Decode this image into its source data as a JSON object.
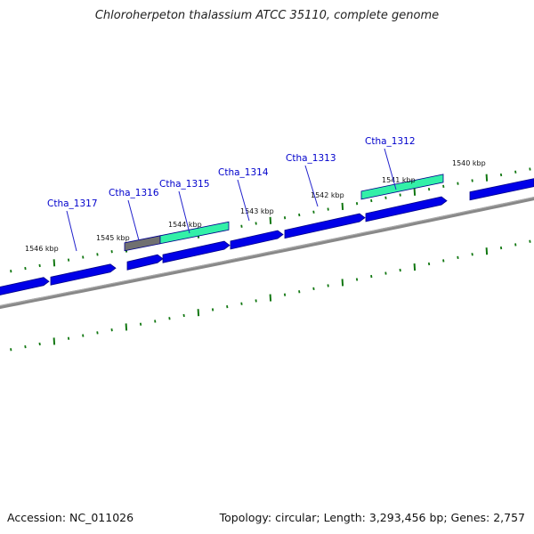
{
  "title": "Chloroherpeton thalassium ATCC 35110, complete genome",
  "footer": {
    "accession": "Accession: NC_011026",
    "summary": "Topology: circular; Length: 3,293,456 bp; Genes: 2,757"
  },
  "colors": {
    "cds": "#0000e8",
    "cds_shadow": "#00008a",
    "rna_or_highlight": "#33f0a8",
    "pseudo": "#707070",
    "backbone": "#888888",
    "ticks": "#117711",
    "label_line": "#2222cc"
  },
  "kbp_labels": [
    {
      "text": "1546 kbp"
    },
    {
      "text": "1545 kbp"
    },
    {
      "text": "1544 kbp"
    },
    {
      "text": "1543 kbp"
    },
    {
      "text": "1542 kbp"
    },
    {
      "text": "1541 kbp"
    },
    {
      "text": "1540 kbp"
    }
  ],
  "gene_labels": [
    {
      "text": "Ctha_1317"
    },
    {
      "text": "Ctha_1316"
    },
    {
      "text": "Ctha_1315"
    },
    {
      "text": "Ctha_1314"
    },
    {
      "text": "Ctha_1313"
    },
    {
      "text": "Ctha_1312"
    }
  ]
}
